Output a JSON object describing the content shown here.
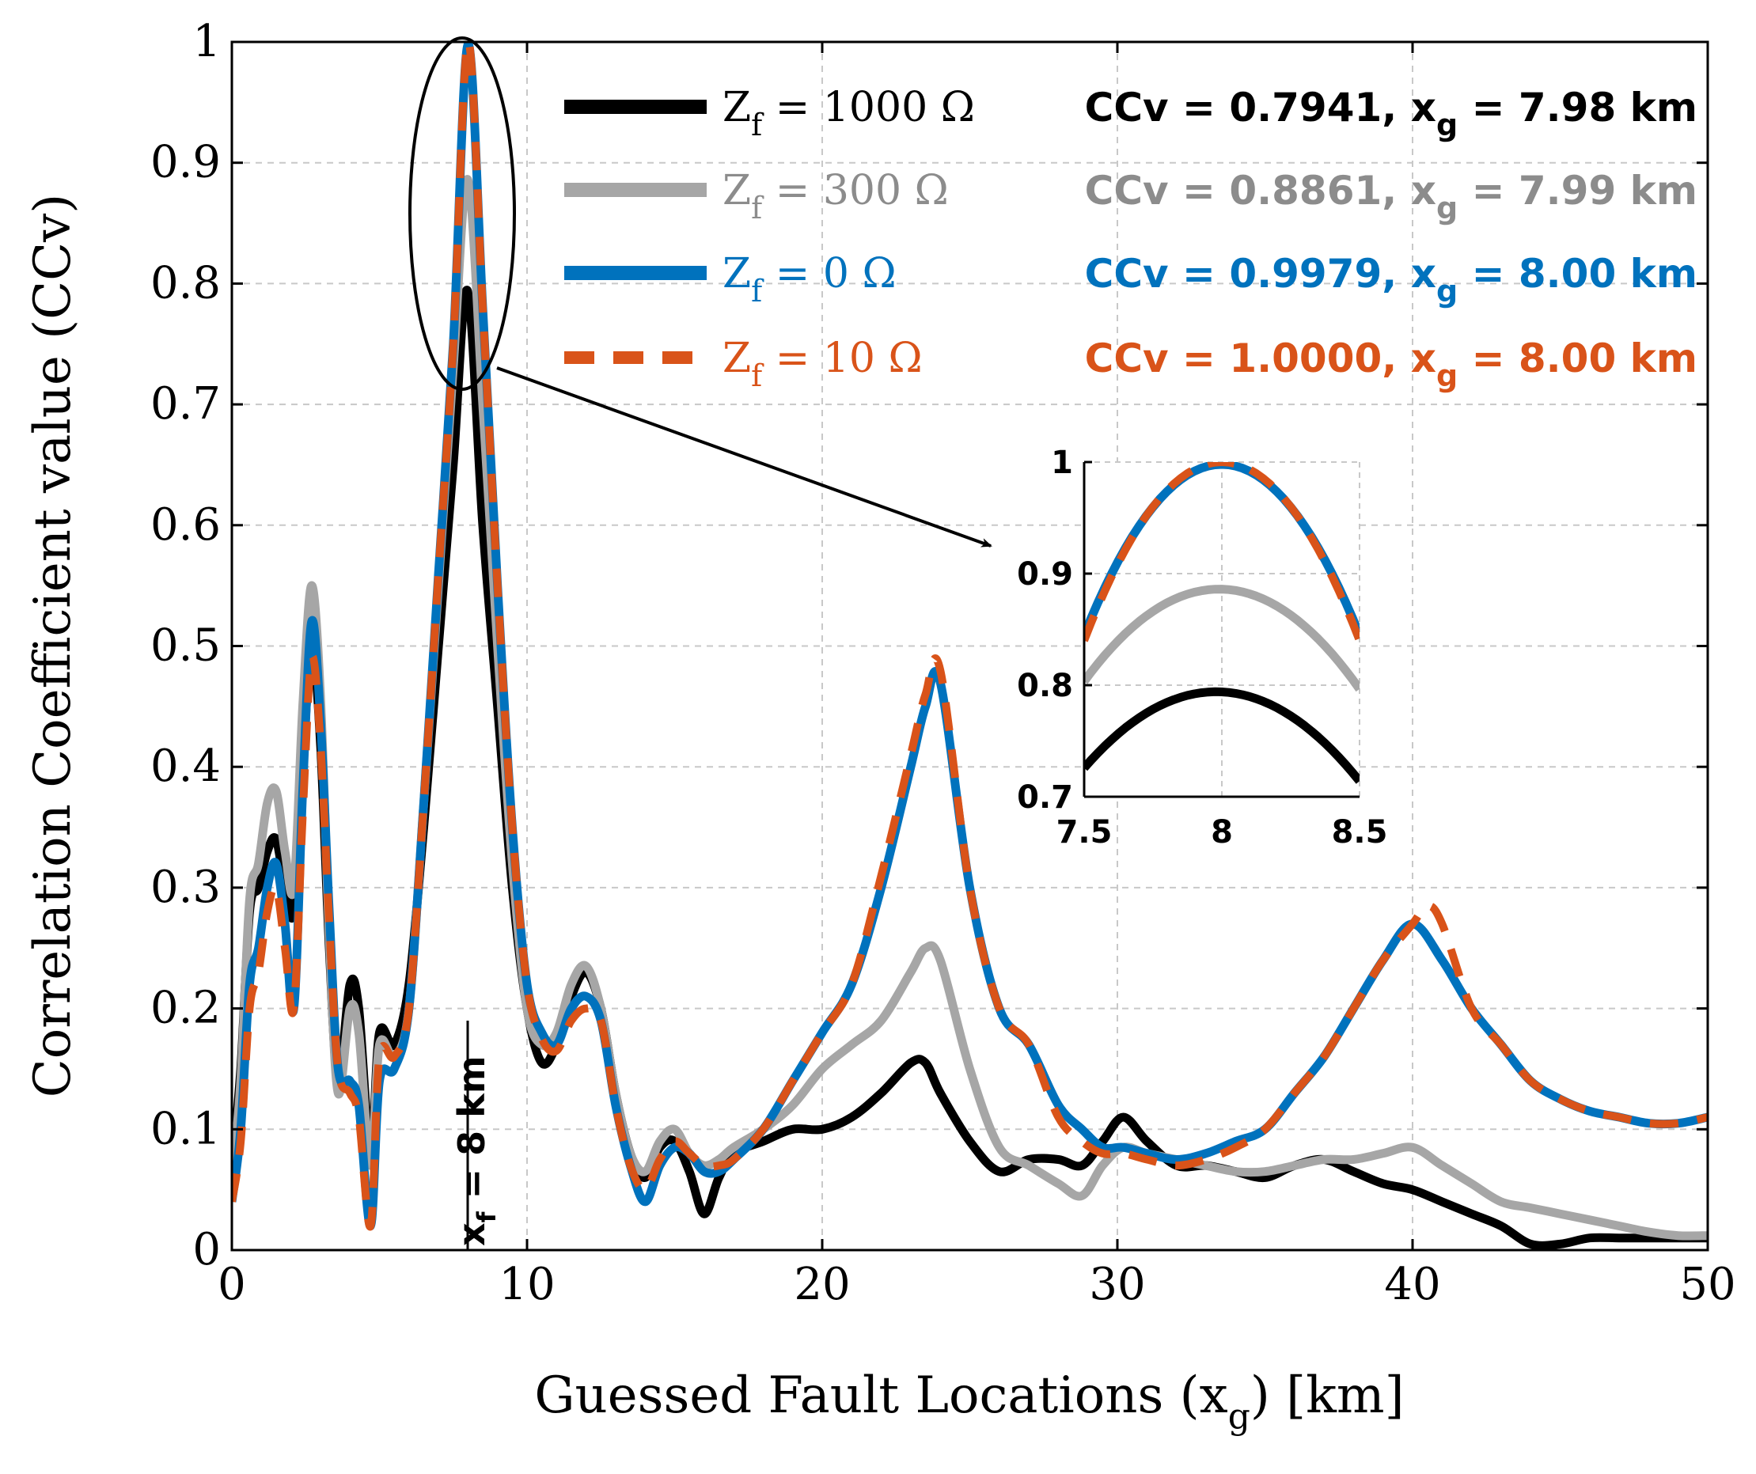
{
  "chart_data": {
    "type": "line",
    "title": "",
    "xlabel_main": "Guessed Fault Locations (x",
    "xlabel_sub": "g",
    "xlabel_tail": ") [km]",
    "ylabel": "Correlation Coefficient value (CCv)",
    "xlim": [
      0,
      50
    ],
    "ylim": [
      0,
      1
    ],
    "xticks": [
      0,
      10,
      20,
      30,
      40,
      50
    ],
    "xtick_labels": [
      "0",
      "10",
      "20",
      "30",
      "40",
      "50"
    ],
    "yticks": [
      0,
      0.1,
      0.2,
      0.3,
      0.4,
      0.5,
      0.6,
      0.7,
      0.8,
      0.9,
      1
    ],
    "ytick_labels": [
      "0",
      "0.1",
      "0.2",
      "0.3",
      "0.4",
      "0.5",
      "0.6",
      "0.7",
      "0.8",
      "0.9",
      "1"
    ],
    "grid": true,
    "fault_marker": {
      "x": 8,
      "y_from": 0,
      "y_to": 0.2,
      "label": "x",
      "label_sub": "f",
      "label_tail": " = 8 km"
    },
    "series": [
      {
        "name": "Z_f = 1000 Ω",
        "legend_label": "Z",
        "legend_sub": "f",
        "legend_tail": " = 1000 Ω",
        "result": "CCv = 0.7941,  x",
        "result_sub": "g",
        "result_tail": " = 7.98 km",
        "color": "#000000",
        "style": "solid",
        "x": [
          0,
          0.3,
          0.6,
          0.9,
          1.2,
          1.5,
          1.8,
          2.1,
          2.4,
          2.7,
          3.0,
          3.3,
          3.6,
          4.0,
          4.3,
          4.7,
          5.0,
          5.5,
          6.0,
          6.5,
          7.0,
          7.5,
          7.98,
          8.5,
          9.0,
          9.5,
          10.0,
          10.5,
          11.0,
          11.5,
          12.0,
          12.5,
          13.0,
          13.5,
          14.0,
          14.5,
          15.0,
          15.5,
          16.0,
          16.5,
          17.0,
          18.0,
          19.0,
          20.0,
          21.0,
          22.0,
          23.0,
          23.5,
          24.0,
          25.0,
          26.0,
          27.0,
          28.0,
          28.8,
          29.5,
          30.2,
          31.0,
          32.0,
          33.0,
          34.0,
          35.0,
          36.0,
          37.0,
          38.0,
          39.0,
          40.0,
          41.0,
          42.0,
          43.0,
          44.0,
          45.0,
          46.0,
          47.0,
          48.0,
          49.0,
          50.0
        ],
        "y": [
          0.07,
          0.15,
          0.28,
          0.3,
          0.33,
          0.34,
          0.3,
          0.28,
          0.4,
          0.5,
          0.42,
          0.25,
          0.14,
          0.22,
          0.2,
          0.08,
          0.18,
          0.17,
          0.22,
          0.35,
          0.5,
          0.65,
          0.7941,
          0.6,
          0.45,
          0.3,
          0.2,
          0.155,
          0.17,
          0.21,
          0.23,
          0.2,
          0.13,
          0.08,
          0.06,
          0.085,
          0.09,
          0.065,
          0.03,
          0.06,
          0.08,
          0.09,
          0.1,
          0.1,
          0.11,
          0.13,
          0.155,
          0.155,
          0.13,
          0.09,
          0.065,
          0.075,
          0.075,
          0.07,
          0.09,
          0.11,
          0.09,
          0.07,
          0.07,
          0.065,
          0.06,
          0.07,
          0.075,
          0.065,
          0.055,
          0.05,
          0.04,
          0.03,
          0.02,
          0.005,
          0.005,
          0.01,
          0.01,
          0.01,
          0.01,
          0.01
        ]
      },
      {
        "name": "Z_f = 300 Ω",
        "legend_label": "Z",
        "legend_sub": "f",
        "legend_tail": " = 300 Ω",
        "result": "CCv = 0.8861,  x",
        "result_sub": "g",
        "result_tail": " = 7.99 km",
        "color": "#a6a6a6",
        "style": "solid",
        "x": [
          0,
          0.3,
          0.6,
          0.9,
          1.2,
          1.5,
          1.8,
          2.1,
          2.4,
          2.7,
          3.0,
          3.3,
          3.6,
          4.0,
          4.3,
          4.7,
          5.0,
          5.5,
          6.0,
          6.5,
          7.0,
          7.5,
          7.99,
          8.5,
          9.0,
          9.5,
          10.0,
          10.5,
          11.0,
          11.5,
          12.0,
          12.5,
          13.0,
          13.5,
          14.0,
          14.5,
          15.0,
          15.5,
          16.0,
          16.5,
          17.0,
          18.0,
          19.0,
          20.0,
          21.0,
          22.0,
          23.0,
          23.5,
          24.0,
          25.0,
          26.0,
          27.0,
          28.0,
          28.8,
          29.5,
          30.2,
          31.0,
          32.0,
          33.0,
          34.0,
          35.0,
          36.0,
          37.0,
          38.0,
          39.0,
          40.0,
          41.0,
          42.0,
          43.0,
          44.0,
          45.0,
          46.0,
          47.0,
          48.0,
          49.0,
          50.0
        ],
        "y": [
          0.06,
          0.14,
          0.29,
          0.32,
          0.37,
          0.38,
          0.33,
          0.3,
          0.45,
          0.55,
          0.46,
          0.26,
          0.13,
          0.2,
          0.18,
          0.07,
          0.17,
          0.16,
          0.2,
          0.37,
          0.55,
          0.73,
          0.8861,
          0.7,
          0.5,
          0.32,
          0.2,
          0.17,
          0.18,
          0.22,
          0.235,
          0.2,
          0.13,
          0.08,
          0.065,
          0.09,
          0.1,
          0.08,
          0.07,
          0.075,
          0.085,
          0.1,
          0.12,
          0.15,
          0.17,
          0.19,
          0.23,
          0.25,
          0.24,
          0.15,
          0.085,
          0.07,
          0.055,
          0.045,
          0.07,
          0.085,
          0.08,
          0.075,
          0.07,
          0.065,
          0.065,
          0.07,
          0.075,
          0.075,
          0.08,
          0.085,
          0.07,
          0.055,
          0.04,
          0.035,
          0.03,
          0.025,
          0.02,
          0.015,
          0.012,
          0.012
        ]
      },
      {
        "name": "Z_f = 0 Ω",
        "legend_label": "Z",
        "legend_sub": "f",
        "legend_tail": " = 0 Ω",
        "result": "CCv = 0.9979,  x",
        "result_sub": "g",
        "result_tail": " = 8.00 km",
        "color": "#0072bd",
        "style": "solid",
        "x": [
          0,
          0.3,
          0.6,
          0.9,
          1.2,
          1.5,
          1.8,
          2.1,
          2.4,
          2.7,
          3.0,
          3.3,
          3.6,
          4.0,
          4.3,
          4.7,
          5.0,
          5.5,
          6.0,
          6.5,
          7.0,
          7.5,
          8.0,
          8.5,
          9.0,
          9.5,
          10.0,
          10.5,
          11.0,
          11.5,
          12.0,
          12.5,
          13.0,
          13.5,
          14.0,
          14.5,
          15.0,
          15.5,
          16.0,
          16.5,
          17.0,
          18.0,
          19.0,
          20.0,
          21.0,
          22.0,
          23.0,
          23.5,
          24.0,
          25.0,
          26.0,
          27.0,
          28.0,
          28.8,
          29.5,
          30.2,
          31.0,
          32.0,
          33.0,
          34.0,
          35.0,
          36.0,
          37.0,
          38.0,
          39.0,
          40.0,
          41.0,
          42.0,
          43.0,
          44.0,
          45.0,
          46.0,
          47.0,
          48.0,
          49.0,
          50.0
        ],
        "y": [
          0.04,
          0.1,
          0.22,
          0.25,
          0.3,
          0.32,
          0.27,
          0.2,
          0.38,
          0.52,
          0.44,
          0.28,
          0.15,
          0.14,
          0.12,
          0.02,
          0.14,
          0.15,
          0.2,
          0.37,
          0.56,
          0.75,
          0.9979,
          0.78,
          0.55,
          0.35,
          0.22,
          0.18,
          0.17,
          0.2,
          0.21,
          0.19,
          0.12,
          0.07,
          0.04,
          0.07,
          0.085,
          0.08,
          0.065,
          0.065,
          0.075,
          0.1,
          0.14,
          0.18,
          0.22,
          0.3,
          0.4,
          0.45,
          0.47,
          0.3,
          0.2,
          0.17,
          0.12,
          0.1,
          0.085,
          0.085,
          0.08,
          0.075,
          0.08,
          0.09,
          0.1,
          0.13,
          0.16,
          0.2,
          0.24,
          0.27,
          0.24,
          0.2,
          0.17,
          0.14,
          0.125,
          0.115,
          0.11,
          0.105,
          0.105,
          0.11
        ]
      },
      {
        "name": "Z_f = 10 Ω",
        "legend_label": "Z",
        "legend_sub": "f",
        "legend_tail": " = 10 Ω",
        "result": "CCv = 1.0000,  x",
        "result_sub": "g",
        "result_tail": " = 8.00 km",
        "color": "#d95319",
        "style": "dashed",
        "x": [
          0,
          0.3,
          0.6,
          0.9,
          1.2,
          1.5,
          1.8,
          2.1,
          2.4,
          2.7,
          3.0,
          3.3,
          3.6,
          4.0,
          4.3,
          4.7,
          5.0,
          5.5,
          6.0,
          6.5,
          7.0,
          7.5,
          8.0,
          8.5,
          9.0,
          9.5,
          10.0,
          10.5,
          11.0,
          11.5,
          12.0,
          12.5,
          13.0,
          13.5,
          14.0,
          14.5,
          15.0,
          15.5,
          16.0,
          16.5,
          17.0,
          18.0,
          19.0,
          20.0,
          21.0,
          22.0,
          23.0,
          23.5,
          24.0,
          25.0,
          26.0,
          27.0,
          28.0,
          28.8,
          29.5,
          30.2,
          31.0,
          32.0,
          33.0,
          34.0,
          35.0,
          36.0,
          37.0,
          38.0,
          39.0,
          40.0,
          40.5,
          41.0,
          42.0,
          43.0,
          44.0,
          45.0,
          46.0,
          47.0,
          48.0,
          49.0,
          50.0
        ],
        "y": [
          0.04,
          0.09,
          0.2,
          0.23,
          0.28,
          0.3,
          0.25,
          0.2,
          0.36,
          0.49,
          0.42,
          0.27,
          0.15,
          0.13,
          0.11,
          0.02,
          0.16,
          0.16,
          0.2,
          0.37,
          0.56,
          0.75,
          1.0,
          0.78,
          0.55,
          0.35,
          0.22,
          0.175,
          0.165,
          0.19,
          0.2,
          0.19,
          0.12,
          0.07,
          0.05,
          0.075,
          0.09,
          0.08,
          0.07,
          0.07,
          0.075,
          0.1,
          0.14,
          0.18,
          0.22,
          0.31,
          0.41,
          0.46,
          0.48,
          0.3,
          0.2,
          0.17,
          0.11,
          0.09,
          0.08,
          0.08,
          0.075,
          0.07,
          0.075,
          0.085,
          0.1,
          0.13,
          0.16,
          0.2,
          0.24,
          0.27,
          0.285,
          0.27,
          0.2,
          0.17,
          0.14,
          0.125,
          0.115,
          0.11,
          0.105,
          0.105,
          0.11
        ]
      }
    ],
    "inset": {
      "xlim": [
        7.5,
        8.5
      ],
      "ylim": [
        0.7,
        1
      ],
      "xticks": [
        7.5,
        8,
        8.5
      ],
      "xtick_labels": [
        "7.5",
        "8",
        "8.5"
      ],
      "yticks": [
        0.7,
        0.8,
        0.9,
        1
      ],
      "ytick_labels": [
        "0.7",
        "0.8",
        "0.9",
        "1"
      ],
      "curves": [
        {
          "name": "Z_f = 1000 Ω",
          "peak": 0.7941,
          "peak_x": 7.98,
          "edge": 0.72,
          "color": "#000000",
          "style": "solid"
        },
        {
          "name": "Z_f = 300 Ω",
          "peak": 0.8861,
          "peak_x": 7.99,
          "edge": 0.8,
          "color": "#a6a6a6",
          "style": "solid"
        },
        {
          "name": "Z_f = 0 Ω",
          "peak": 0.9979,
          "peak_x": 8.0,
          "edge": 0.845,
          "color": "#0072bd",
          "style": "solid"
        },
        {
          "name": "Z_f = 10 Ω",
          "peak": 1.0,
          "peak_x": 8.0,
          "edge": 0.84,
          "color": "#d95319",
          "style": "dashed"
        }
      ]
    }
  }
}
